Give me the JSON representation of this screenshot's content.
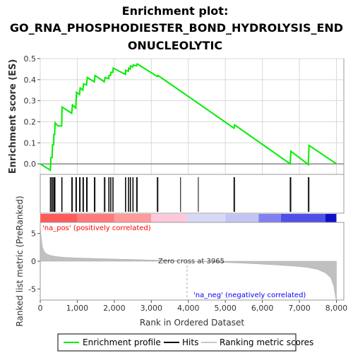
{
  "chart_data": {
    "type": "line",
    "title_lines": [
      "Enrichment plot:",
      "GO_RNA_PHOSPHODIESTER_BOND_HYDROLYSIS_END",
      "ONUCLEOLYTIC"
    ],
    "es_panel": {
      "ylabel": "Enrichment score (ES)",
      "ylim": [
        -0.05,
        0.5
      ],
      "yticks": [
        0.0,
        0.1,
        0.2,
        0.3,
        0.4,
        0.5
      ],
      "ytick_labels": [
        "0.0",
        "0.1",
        "0.2",
        "0.3",
        "0.4",
        "0.5"
      ],
      "grid": true,
      "series": [
        {
          "name": "Enrichment profile",
          "color": "#00ee00",
          "points": [
            [
              0,
              0.0
            ],
            [
              270,
              -0.03
            ],
            [
              290,
              0.03
            ],
            [
              320,
              0.03
            ],
            [
              330,
              0.09
            ],
            [
              360,
              0.09
            ],
            [
              370,
              0.14
            ],
            [
              390,
              0.14
            ],
            [
              400,
              0.195
            ],
            [
              480,
              0.18
            ],
            [
              580,
              0.18
            ],
            [
              590,
              0.27
            ],
            [
              850,
              0.24
            ],
            [
              870,
              0.28
            ],
            [
              960,
              0.265
            ],
            [
              980,
              0.34
            ],
            [
              1060,
              0.33
            ],
            [
              1080,
              0.36
            ],
            [
              1150,
              0.35
            ],
            [
              1170,
              0.38
            ],
            [
              1250,
              0.375
            ],
            [
              1270,
              0.41
            ],
            [
              1460,
              0.39
            ],
            [
              1480,
              0.42
            ],
            [
              1730,
              0.39
            ],
            [
              1750,
              0.41
            ],
            [
              1850,
              0.405
            ],
            [
              1860,
              0.42
            ],
            [
              1900,
              0.42
            ],
            [
              1910,
              0.435
            ],
            [
              1960,
              0.435
            ],
            [
              1970,
              0.455
            ],
            [
              2300,
              0.425
            ],
            [
              2310,
              0.445
            ],
            [
              2380,
              0.44
            ],
            [
              2390,
              0.455
            ],
            [
              2430,
              0.45
            ],
            [
              2440,
              0.465
            ],
            [
              2500,
              0.46
            ],
            [
              2510,
              0.47
            ],
            [
              2600,
              0.465
            ],
            [
              2620,
              0.475
            ],
            [
              3160,
              0.415
            ],
            [
              3180,
              0.42
            ],
            [
              5230,
              0.17
            ],
            [
              5250,
              0.185
            ],
            [
              6750,
              0.0
            ],
            [
              6770,
              0.06
            ],
            [
              7240,
              -0.003
            ],
            [
              7260,
              0.088
            ],
            [
              8000,
              0.0
            ]
          ]
        }
      ]
    },
    "hits_panel": {
      "legend_name": "Hits",
      "positions": [
        270,
        290,
        320,
        330,
        360,
        370,
        390,
        400,
        580,
        590,
        850,
        870,
        960,
        980,
        1060,
        1080,
        1150,
        1170,
        1250,
        1270,
        1460,
        1480,
        1730,
        1750,
        1850,
        1860,
        1900,
        1910,
        1960,
        1970,
        2300,
        2310,
        2380,
        2390,
        2430,
        2440,
        2500,
        2510,
        2600,
        2620,
        3160,
        3180,
        3790,
        4270,
        5230,
        5250,
        6750,
        6770,
        7240,
        7260
      ]
    },
    "rank_panel": {
      "ylabel": "Ranked list metric (PreRanked)",
      "ylim": [
        -7,
        7
      ],
      "yticks": [
        5,
        0,
        -5
      ],
      "ytick_labels": [
        "5",
        "0",
        "-5"
      ],
      "legend_name": "Ranking metric scores",
      "zero_cross_label": "Zero cross at 3965",
      "zero_cross": 3965,
      "pos_label": "'na_pos' (positively correlated)",
      "neg_label": "'na_neg' (negatively correlated)",
      "pos_color": "#ff0000",
      "neg_color": "#0000ff",
      "metric_points": [
        [
          0,
          6.2
        ],
        [
          30,
          4.0
        ],
        [
          60,
          2.6
        ],
        [
          100,
          1.9
        ],
        [
          150,
          1.4
        ],
        [
          250,
          1.1
        ],
        [
          400,
          0.85
        ],
        [
          700,
          0.68
        ],
        [
          1200,
          0.55
        ],
        [
          2000,
          0.4
        ],
        [
          3000,
          0.22
        ],
        [
          3965,
          0.0
        ],
        [
          4500,
          -0.12
        ],
        [
          5500,
          -0.35
        ],
        [
          6200,
          -0.6
        ],
        [
          6800,
          -0.85
        ],
        [
          7200,
          -1.1
        ],
        [
          7500,
          -1.5
        ],
        [
          7700,
          -2.1
        ],
        [
          7850,
          -3.0
        ],
        [
          7930,
          -4.5
        ],
        [
          7980,
          -6.6
        ],
        [
          8000,
          -7.0
        ]
      ]
    },
    "xaxis": {
      "label": "Rank in Ordered Dataset",
      "xlim": [
        0,
        8200
      ],
      "xticks": [
        0,
        1000,
        2000,
        3000,
        4000,
        5000,
        6000,
        7000,
        8000
      ],
      "xtick_labels": [
        "0",
        "1,000",
        "2,000",
        "3,000",
        "4,000",
        "5,000",
        "6,000",
        "7,000",
        "8,000"
      ]
    },
    "legend": {
      "placement": "bottom",
      "items": [
        {
          "label": "Enrichment profile",
          "color": "#00ee00"
        },
        {
          "label": "Hits",
          "color": "#000000"
        },
        {
          "label": "Ranking metric scores",
          "color": "#c8c8c8"
        }
      ]
    }
  }
}
